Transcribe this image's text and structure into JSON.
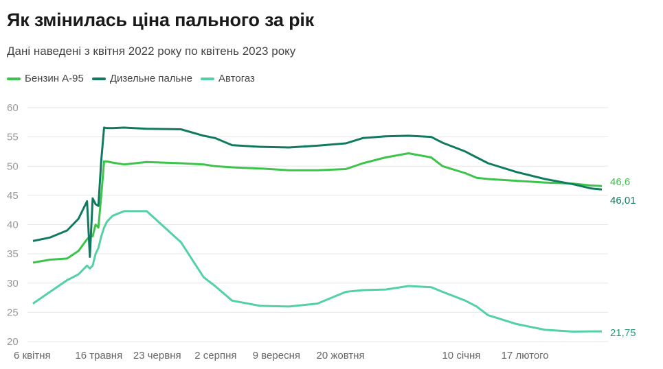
{
  "header": {
    "title": "Як змінилась ціна пального за рік",
    "subtitle": "Дані наведені з квітня 2022 року по квітень 2023 року"
  },
  "legend": [
    {
      "label": "Бензин А-95",
      "color": "#3cc44a"
    },
    {
      "label": "Дизельне пальне",
      "color": "#0f7a5f"
    },
    {
      "label": "Автогаз",
      "color": "#52d1a4"
    }
  ],
  "chart_data": {
    "type": "line",
    "title": "Як змінилась ціна пального за рік",
    "subtitle": "Дані наведені з квітня 2022 року по квітень 2023 року",
    "xlabel": "",
    "ylabel": "",
    "ylim": [
      20,
      60
    ],
    "yticks": [
      20,
      25,
      30,
      35,
      40,
      45,
      50,
      55,
      60
    ],
    "grid": true,
    "legend_position": "top-left",
    "x_ticks": [
      {
        "label": "6 квітня",
        "pos": 0.0
      },
      {
        "label": "16 травня",
        "pos": 0.108
      },
      {
        "label": "23 червня",
        "pos": 0.21
      },
      {
        "label": "2 серпня",
        "pos": 0.318
      },
      {
        "label": "9 вересня",
        "pos": 0.42
      },
      {
        "label": "20 жовтня",
        "pos": 0.532
      },
      {
        "label": "10 січня",
        "pos": 0.753
      },
      {
        "label": "17 лютого",
        "pos": 0.857
      }
    ],
    "x": [
      0.0,
      0.03,
      0.06,
      0.08,
      0.095,
      0.1,
      0.105,
      0.11,
      0.115,
      0.12,
      0.125,
      0.13,
      0.14,
      0.16,
      0.2,
      0.26,
      0.3,
      0.32,
      0.35,
      0.4,
      0.45,
      0.5,
      0.55,
      0.58,
      0.62,
      0.66,
      0.7,
      0.72,
      0.76,
      0.78,
      0.8,
      0.85,
      0.9,
      0.95,
      0.98,
      1.0
    ],
    "series": [
      {
        "name": "Бензин А-95",
        "color": "#3cc44a",
        "values": [
          33.5,
          34,
          34.2,
          35.5,
          37.5,
          38,
          38,
          40,
          39.5,
          45,
          50.8,
          50.8,
          50.6,
          50.3,
          50.7,
          50.5,
          50.3,
          50,
          49.8,
          49.6,
          49.3,
          49.3,
          49.5,
          50.5,
          51.5,
          52.2,
          51.5,
          50,
          48.8,
          48,
          47.8,
          47.5,
          47.2,
          47,
          46.7,
          46.6
        ],
        "end_label": "46,6"
      },
      {
        "name": "Дизельне пальне",
        "color": "#0f7a5f",
        "values": [
          37.2,
          37.8,
          39,
          41,
          44,
          34.5,
          44.5,
          43.5,
          43.2,
          51,
          56.6,
          56.5,
          56.5,
          56.6,
          56.4,
          56.3,
          55.2,
          54.8,
          53.6,
          53.3,
          53.2,
          53.5,
          53.9,
          54.8,
          55.1,
          55.2,
          55,
          54,
          52.5,
          51.5,
          50.5,
          49,
          47.8,
          46.9,
          46.2,
          46.01
        ],
        "end_label": "46,01"
      },
      {
        "name": "Автогаз",
        "color": "#52d1a4",
        "values": [
          26.5,
          28.5,
          30.5,
          31.5,
          33,
          32.5,
          33,
          35,
          36,
          38,
          39.5,
          40.5,
          41.5,
          42.3,
          42.3,
          37,
          31,
          29.5,
          27,
          26.1,
          26,
          26.5,
          28.5,
          28.8,
          28.9,
          29.5,
          29.3,
          28.5,
          27,
          26,
          24.5,
          23,
          22,
          21.7,
          21.75,
          21.75
        ],
        "end_label": "21,75"
      }
    ]
  }
}
